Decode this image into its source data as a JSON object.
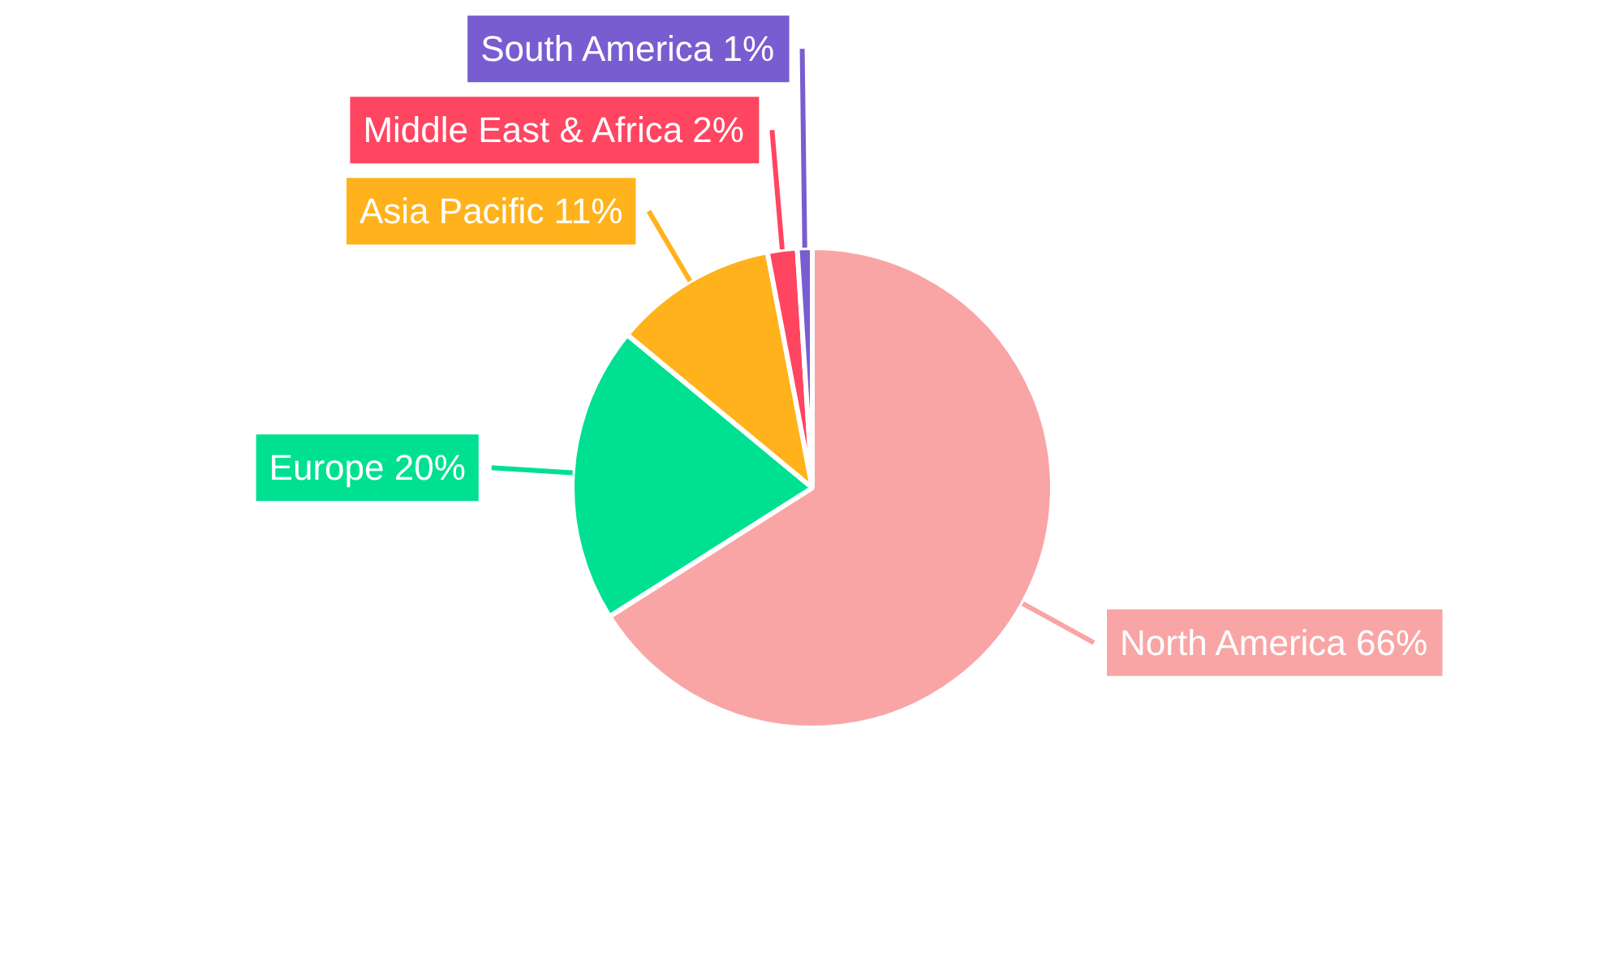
{
  "chart_data": {
    "type": "pie",
    "categories": [
      "North America",
      "Europe",
      "Asia Pacific",
      "Middle East & Africa",
      "South America"
    ],
    "values": [
      66,
      20,
      11,
      2,
      1
    ],
    "value_labels": [
      "66%",
      "20%",
      "11%",
      "2%",
      "1%"
    ],
    "colors": [
      "#f9a5a5",
      "#00e092",
      "#ffb21b",
      "#ff4560",
      "#775dd0"
    ]
  }
}
